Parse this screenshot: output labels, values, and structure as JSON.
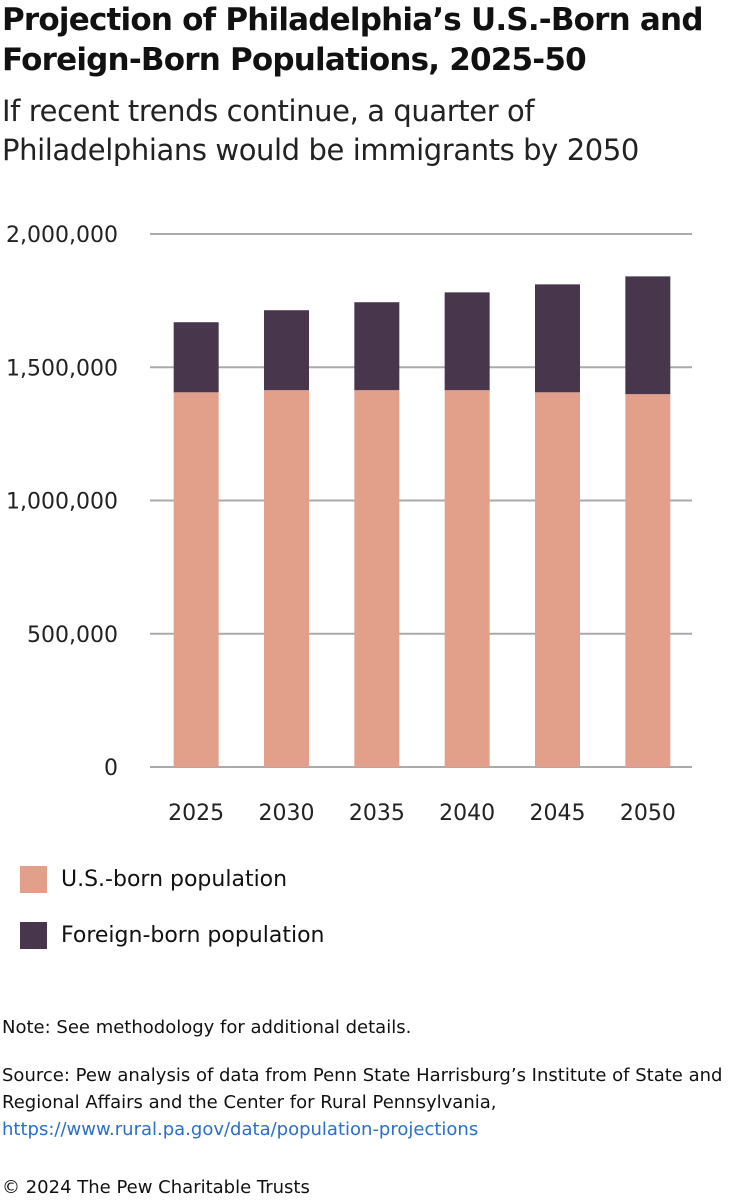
{
  "title": "Projection of Philadelphia’s U.S.-Born and Foreign-Born Populations, 2025-50",
  "subtitle": "If recent trends continue, a quarter of Philadelphians would be immigrants by 2050",
  "chart_data": {
    "type": "bar",
    "stacked": true,
    "categories": [
      "2025",
      "2030",
      "2035",
      "2040",
      "2045",
      "2050"
    ],
    "series": [
      {
        "name": "U.S.-born population",
        "color": "#e2a08b",
        "values": [
          1406000,
          1414000,
          1414000,
          1414000,
          1406000,
          1399000
        ]
      },
      {
        "name": "Foreign-born population",
        "color": "#48374c",
        "values": [
          263000,
          300000,
          330000,
          367000,
          405000,
          442000
        ]
      }
    ],
    "ylim": [
      0,
      2000000
    ],
    "yticks": [
      0,
      500000,
      1000000,
      1500000,
      2000000
    ],
    "ytick_labels": [
      "0",
      "500,000",
      "1,000,000",
      "1,500,000",
      "2,000,000"
    ],
    "grid": true,
    "legend_placement": "bottom-left"
  },
  "note": "Note: See methodology for additional details.",
  "source": "Source: Pew analysis of data from Penn State Harrisburg’s Institute of State and Regional Affairs and the Center for Rural Pennsylvania,",
  "source_link": "https://www.rural.pa.gov/data/population-projections",
  "copyright": "© 2024 The Pew Charitable Trusts"
}
